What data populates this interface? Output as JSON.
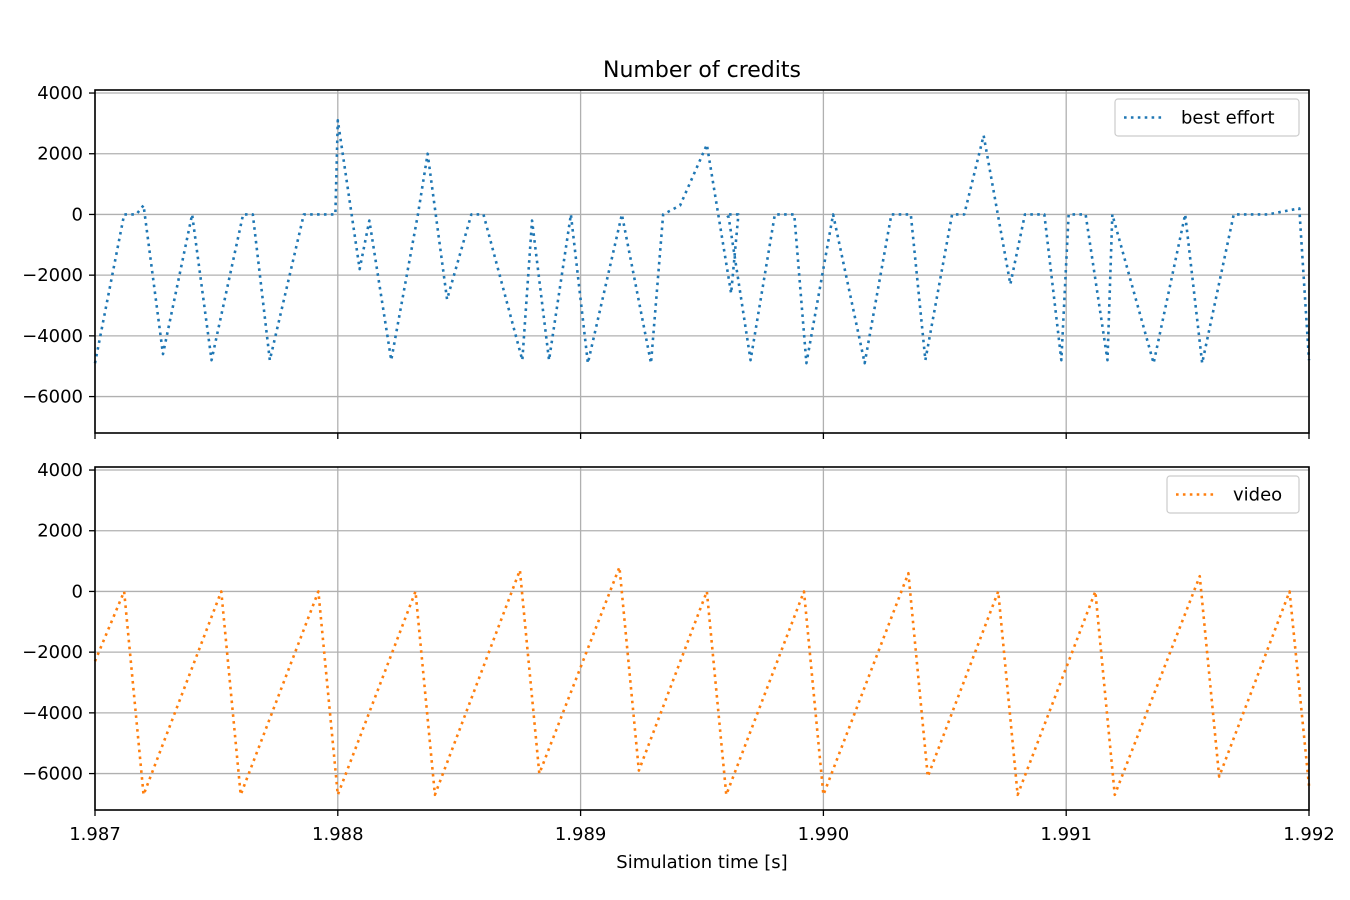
{
  "chart_data": {
    "type": "line",
    "title": "Number of credits",
    "xlabel": "Simulation time [s]",
    "ylabel": "",
    "xlim": [
      1.987,
      1.992
    ],
    "ylim": [
      -7200,
      4100
    ],
    "grid": true,
    "legend_placement": "top-right",
    "x_ticks": [
      "1.987",
      "1.988",
      "1.989",
      "1.990",
      "1.991",
      "1.992"
    ],
    "y_ticks": [
      "−6000",
      "−4000",
      "−2000",
      "0",
      "2000",
      "4000"
    ],
    "series": [
      {
        "name": "best effort",
        "color": "#1f77b4",
        "x": [
          1.987,
          1.98712,
          1.98717,
          1.9872,
          1.98728,
          1.9874,
          1.98748,
          1.98761,
          1.98765,
          1.98772,
          1.98786,
          1.98794,
          1.98799,
          1.988,
          1.98809,
          1.98813,
          1.98822,
          1.98833,
          1.98837,
          1.98845,
          1.98855,
          1.9886,
          1.98876,
          1.9888,
          1.98887,
          1.98896,
          1.98903,
          1.98917,
          1.98929,
          1.98934,
          1.98941,
          1.98952,
          1.98962,
          1.98965,
          1.9896,
          1.98961,
          1.9897,
          1.9898,
          1.98988,
          1.98993,
          1.99004,
          1.99017,
          1.99028,
          1.99036,
          1.99042,
          1.99053,
          1.99058,
          1.99066,
          1.99077,
          1.99083,
          1.99091,
          1.99098,
          1.99101,
          1.99108,
          1.99117,
          1.99119,
          1.99136,
          1.99149,
          1.99156,
          1.99169,
          1.99177,
          1.99183,
          1.99196,
          1.992
        ],
        "y": [
          -4900,
          0,
          0,
          300,
          -4600,
          0,
          -4800,
          0,
          0,
          -4800,
          0,
          0,
          0,
          3100,
          -1800,
          -200,
          -4800,
          0,
          2000,
          -2800,
          0,
          0,
          -4800,
          -200,
          -4800,
          0,
          -4900,
          0,
          -4900,
          0,
          300,
          2300,
          -2600,
          0,
          0,
          -100,
          -4800,
          0,
          0,
          -4900,
          0,
          -4900,
          0,
          0,
          -4800,
          0,
          0,
          2600,
          -2300,
          0,
          0,
          -4800,
          0,
          0,
          -4800,
          0,
          -4900,
          0,
          -4900,
          0,
          0,
          0,
          200,
          -4800
        ]
      },
      {
        "name": "video",
        "color": "#ff7f0e",
        "x": [
          1.987,
          1.98712,
          1.9872,
          1.98752,
          1.9876,
          1.98792,
          1.988,
          1.98832,
          1.9884,
          1.98875,
          1.98883,
          1.98916,
          1.98924,
          1.98952,
          1.9896,
          1.98992,
          1.99,
          1.99035,
          1.99043,
          1.99072,
          1.9908,
          1.99112,
          1.9912,
          1.99155,
          1.99163,
          1.99192,
          1.992
        ],
        "y": [
          -2300,
          0,
          -6700,
          0,
          -6700,
          0,
          -6700,
          0,
          -6700,
          700,
          -6000,
          800,
          -5900,
          0,
          -6700,
          0,
          -6700,
          600,
          -6100,
          0,
          -6700,
          0,
          -6700,
          500,
          -6100,
          0,
          -6400
        ]
      }
    ]
  }
}
